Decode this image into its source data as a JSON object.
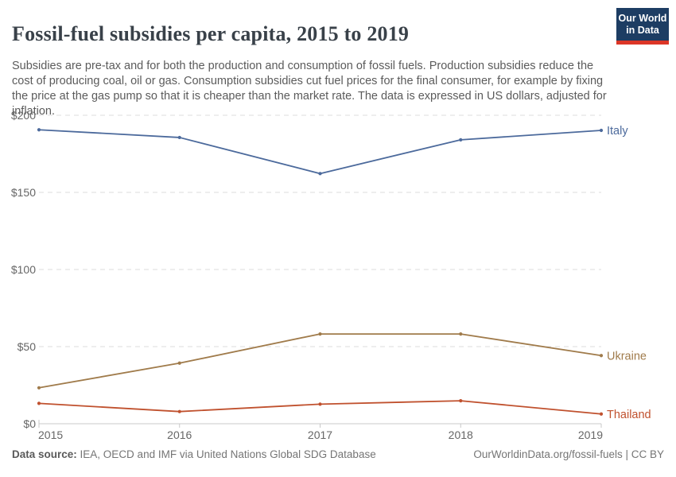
{
  "header": {
    "title": "Fossil-fuel subsidies per capita, 2015 to 2019",
    "subtitle": "Subsidies are pre-tax and for both the production and consumption of fossil fuels. Production subsidies reduce the cost of producing coal, oil or gas. Consumption subsidies cut fuel prices for the final consumer, for example by fixing the price at the gas pump so that it is cheaper than the market rate. The data is expressed in US dollars, adjusted for inflation.",
    "logo": {
      "line1": "Our World",
      "line2": "in Data",
      "bg_color": "#1D3D63",
      "accent_color": "#DC3627"
    }
  },
  "chart_data": {
    "type": "line",
    "title": "Fossil-fuel subsidies per capita, 2015 to 2019",
    "x": [
      2015,
      2016,
      2017,
      2018,
      2019
    ],
    "xlabel": "",
    "ylabel": "",
    "y_ticks": [
      0,
      50,
      100,
      150,
      200
    ],
    "y_tick_labels": [
      "$0",
      "$50",
      "$100",
      "$150",
      "$200"
    ],
    "ylim": [
      0,
      200
    ],
    "grid": "horizontal-dashed",
    "legend_position": "end-of-line-labels",
    "series": [
      {
        "name": "Italy",
        "color": "#4C6A9C",
        "values": [
          190.6,
          185.6,
          162.2,
          184.1,
          190.2
        ]
      },
      {
        "name": "Ukraine",
        "color": "#A07B4B",
        "values": [
          23.3,
          39.3,
          58.2,
          58.2,
          44.2
        ]
      },
      {
        "name": "Thailand",
        "color": "#C0512E",
        "values": [
          13.2,
          7.9,
          12.7,
          14.9,
          6.3
        ]
      }
    ],
    "axis_color": "#c8c8c8",
    "grid_color": "#dcdcdc",
    "tick_label_color": "#666666"
  },
  "footer": {
    "datasource_label": "Data source:",
    "datasource_value": "IEA, OECD and IMF via United Nations Global SDG Database",
    "attribution": "OurWorldinData.org/fossil-fuels | CC BY"
  }
}
